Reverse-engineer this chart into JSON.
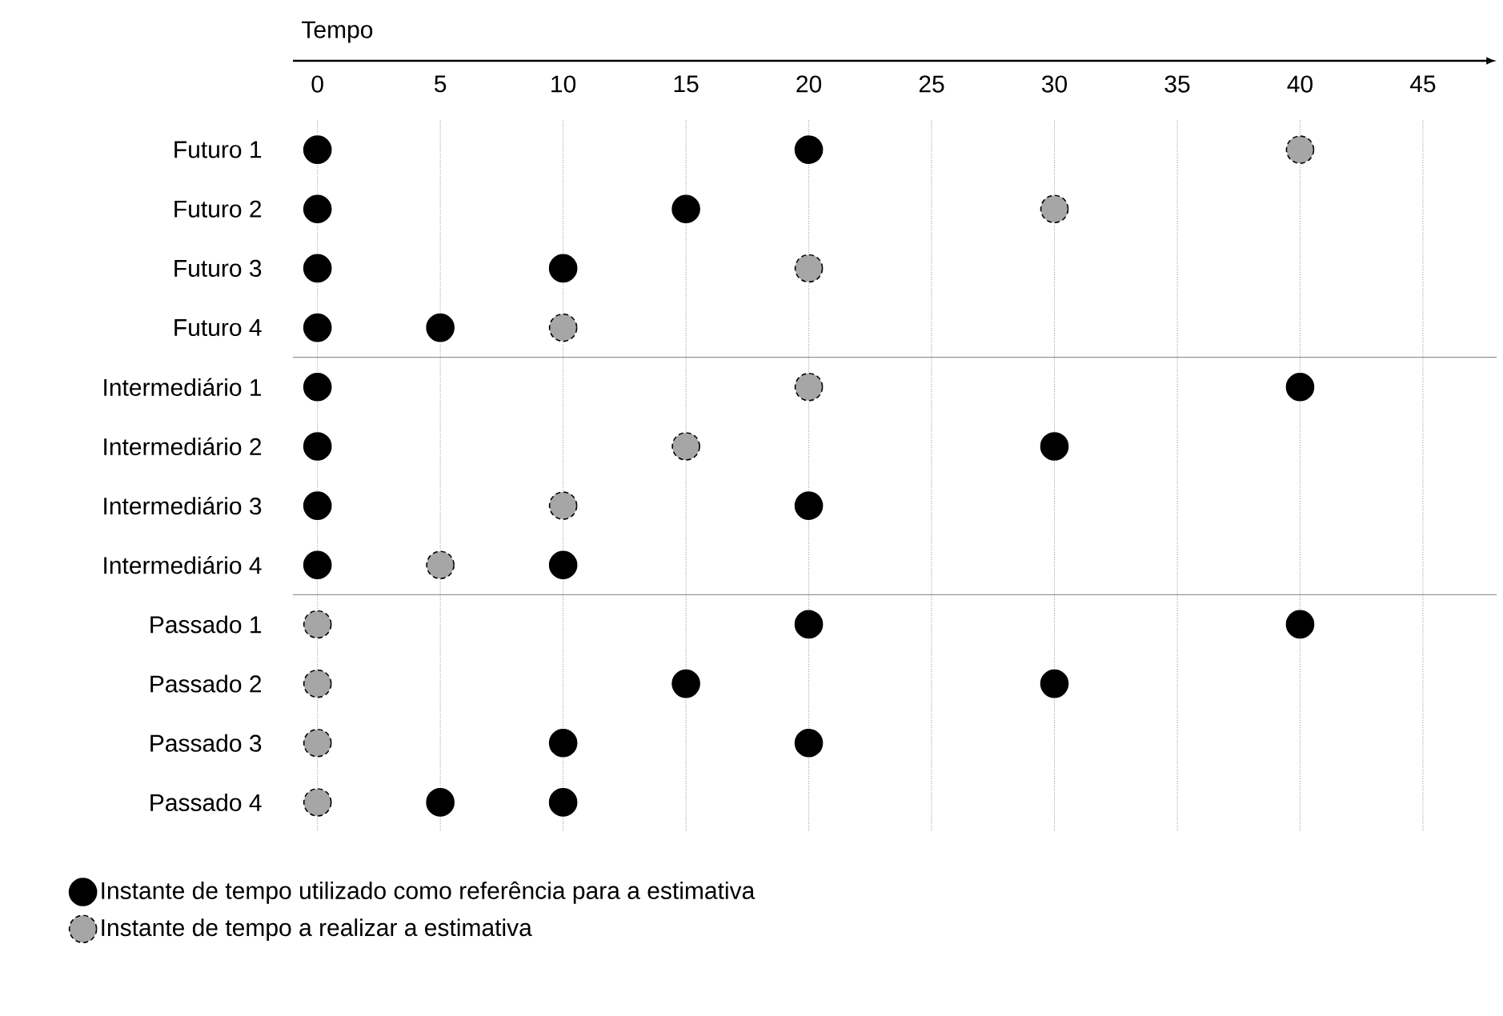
{
  "chart_data": {
    "type": "scatter",
    "orientation": "horizontal",
    "xlabel": "Tempo",
    "categories": [
      "Futuro 1",
      "Futuro 2",
      "Futuro 3",
      "Futuro 4",
      "Intermediário 1",
      "Intermediário 2",
      "Intermediário 3",
      "Intermediário 4",
      "Passado 1",
      "Passado 2",
      "Passado 3",
      "Passado 4"
    ],
    "series": [
      {
        "name": "Instante de tempo utilizado como referência para a estimativa",
        "color": "#000000",
        "values": [
          0,
          0,
          0,
          0,
          0,
          0,
          0,
          0,
          20,
          15,
          10,
          5
        ]
      },
      {
        "color": "#000000",
        "values": [
          20,
          15,
          10,
          5,
          40,
          30,
          20,
          10,
          40,
          30,
          20,
          10
        ]
      },
      {
        "name": "Instante de tempo a realizar a estimativa",
        "color": "#a6a6a6",
        "line_style": "dashed",
        "values": [
          40,
          30,
          20,
          10,
          20,
          15,
          10,
          5,
          0,
          0,
          0,
          0
        ]
      }
    ],
    "xlim": [
      -1,
      48
    ],
    "xticks": [
      0,
      5,
      10,
      15,
      20,
      25,
      30,
      35,
      40,
      45
    ],
    "grid": "x",
    "legend": "bottom left"
  }
}
